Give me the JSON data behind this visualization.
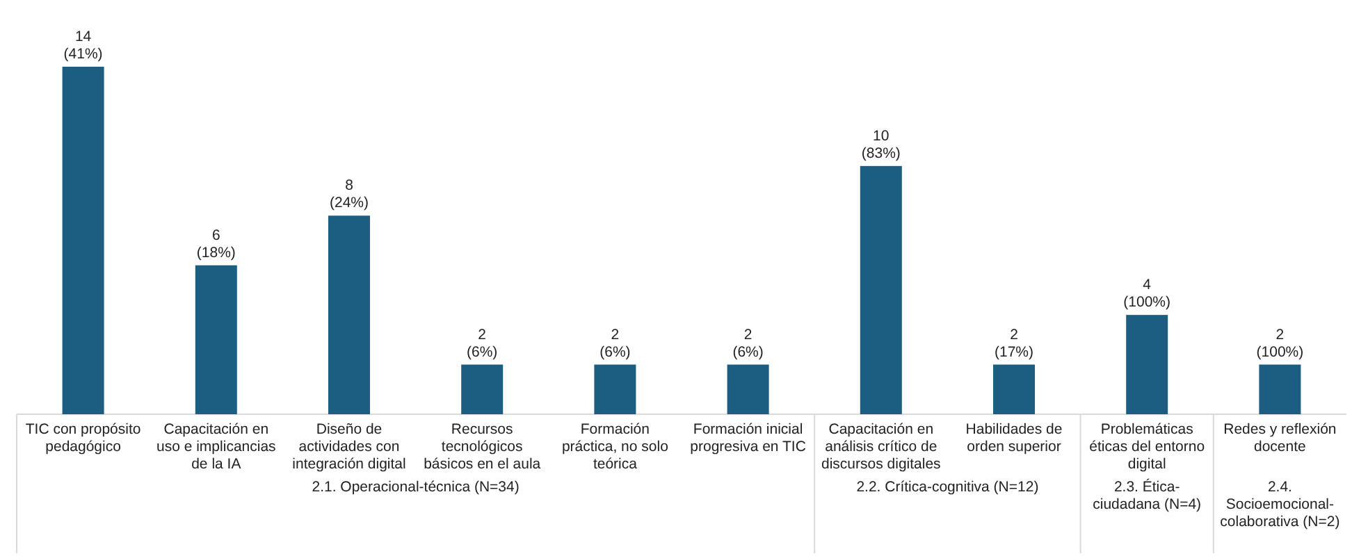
{
  "chart_data": {
    "type": "bar",
    "categories": [
      "TIC con propósito pedagógico",
      "Capacitación en uso e implicancias de la IA",
      "Diseño de actividades con integración digital",
      "Recursos tecnológicos básicos en el aula",
      "Formación práctica, no solo teórica",
      "Formación inicial progresiva en TIC",
      "Capacitación en análisis crítico de discursos digitales",
      "Habilidades de orden superior",
      "Problemáticas éticas del entorno digital",
      "Redes y reflexión docente"
    ],
    "values": [
      14,
      6,
      8,
      2,
      2,
      2,
      10,
      2,
      4,
      2
    ],
    "value_labels": [
      "14 (41%)",
      "6 (18%)",
      "8 (24%)",
      "2 (6%)",
      "2 (6%)",
      "2 (6%)",
      "10 (83%)",
      "2 (17%)",
      "4 (100%)",
      "2 (100%)"
    ],
    "color": "#1b5e82",
    "annotations": [
      "2.1. Operacional-técnica (N=34)",
      "2.2. Crítica-cognitiva (N=12)",
      "2.3. Ética-ciudadana (N=4)",
      "2.4. Socioemocional-colaborativa (N=2)"
    ]
  }
}
